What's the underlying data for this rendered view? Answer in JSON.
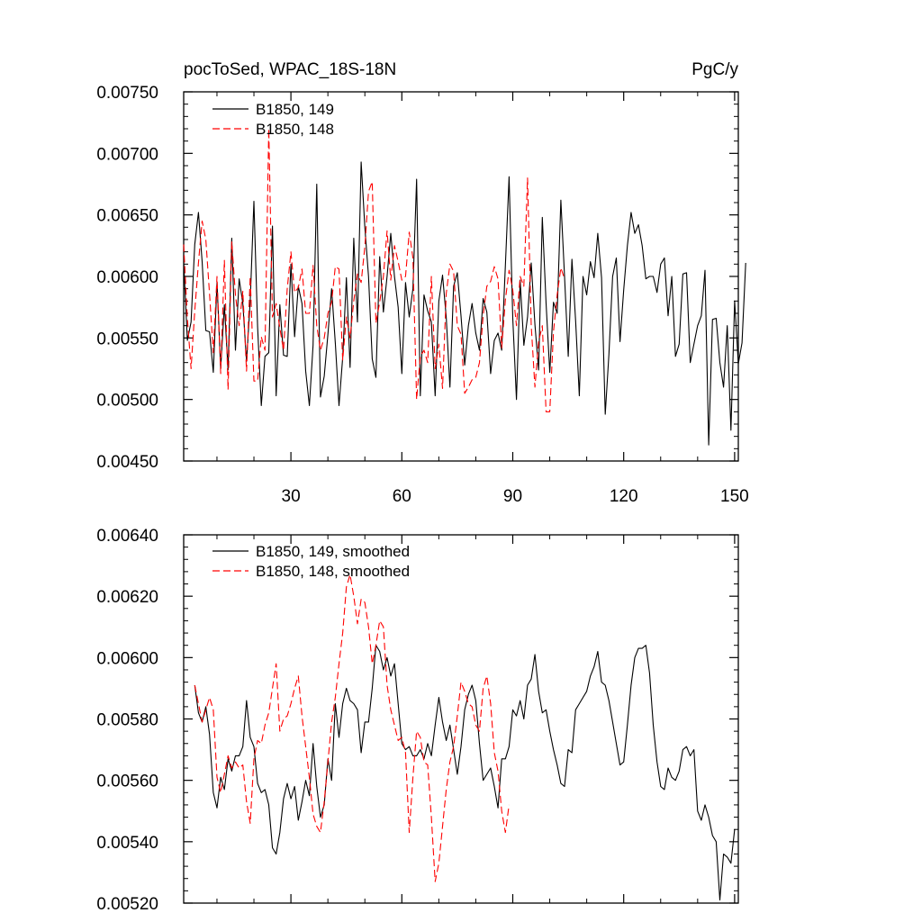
{
  "chart_data": [
    {
      "type": "line",
      "title": "pocToSed, WPAC_18S-18N",
      "units": "PgC/y",
      "xlim": [
        1,
        151
      ],
      "ylim": [
        0.0045,
        0.0075
      ],
      "xticks": [
        30,
        60,
        90,
        120,
        150
      ],
      "yticks": [
        "0.00450",
        "0.00500",
        "0.00550",
        "0.00600",
        "0.00650",
        "0.00700",
        "0.00750"
      ],
      "legend_position": "top-left",
      "series": [
        {
          "name": "B1850, 149",
          "color": "#000000",
          "dash": "solid",
          "x_start": 1,
          "values": [
            0.00612,
            0.00548,
            0.00563,
            0.00626,
            0.00652,
            0.00612,
            0.00556,
            0.00555,
            0.00522,
            0.00595,
            0.00525,
            0.00577,
            0.00524,
            0.00631,
            0.0054,
            0.00598,
            0.00578,
            0.00531,
            0.0058,
            0.00661,
            0.00559,
            0.00495,
            0.00535,
            0.00538,
            0.00641,
            0.00503,
            0.00577,
            0.00536,
            0.00535,
            0.0061,
            0.00551,
            0.00592,
            0.00578,
            0.00523,
            0.00495,
            0.00544,
            0.00675,
            0.00502,
            0.00519,
            0.00553,
            0.0059,
            0.00546,
            0.00495,
            0.00534,
            0.00599,
            0.00526,
            0.00631,
            0.00563,
            0.00693,
            0.0064,
            0.006,
            0.00533,
            0.00518,
            0.00616,
            0.00571,
            0.006,
            0.00635,
            0.006,
            0.00575,
            0.00521,
            0.00595,
            0.00567,
            0.0059,
            0.00679,
            0.00503,
            0.00585,
            0.00572,
            0.00563,
            0.00503,
            0.0058,
            0.00601,
            0.00567,
            0.0051,
            0.00592,
            0.00603,
            0.00568,
            0.00528,
            0.0056,
            0.00578,
            0.00554,
            0.0054,
            0.00582,
            0.00571,
            0.00521,
            0.00548,
            0.00554,
            0.0054,
            0.00609,
            0.00681,
            0.00566,
            0.005,
            0.00597,
            0.00544,
            0.00567,
            0.00611,
            0.00561,
            0.00524,
            0.00648,
            0.00578,
            0.00522,
            0.00579,
            0.0057,
            0.00662,
            0.006,
            0.00535,
            0.00614,
            0.00564,
            0.00503,
            0.006,
            0.00585,
            0.00612,
            0.00599,
            0.00635,
            0.00599,
            0.00488,
            0.00537,
            0.006,
            0.00615,
            0.00547,
            0.00589,
            0.00625,
            0.00652,
            0.00635,
            0.00642,
            0.00625,
            0.00598,
            0.006,
            0.006,
            0.00587,
            0.0061,
            0.00615,
            0.00568,
            0.006,
            0.00535,
            0.00545,
            0.00602,
            0.00603,
            0.0053,
            0.00545,
            0.0056,
            0.00568,
            0.00605,
            0.00463,
            0.00565,
            0.00566,
            0.0053,
            0.0051,
            0.0056,
            0.00475,
            0.0058,
            0.00529,
            0.00546,
            0.00611
          ]
        },
        {
          "name": "B1850, 148",
          "color": "#ff0000",
          "dash": "dashed",
          "x_start": 1,
          "values": [
            0.00626,
            0.00566,
            0.00525,
            0.00572,
            0.00611,
            0.00645,
            0.0063,
            0.00586,
            0.00538,
            0.006,
            0.00521,
            0.00613,
            0.00508,
            0.00628,
            0.00585,
            0.0056,
            0.00588,
            0.00523,
            0.006,
            0.00515,
            0.00515,
            0.00551,
            0.0054,
            0.0072,
            0.00567,
            0.00578,
            0.00558,
            0.0054,
            0.0059,
            0.0062,
            0.00587,
            0.00591,
            0.00606,
            0.0057,
            0.0057,
            0.00609,
            0.0056,
            0.0054,
            0.0055,
            0.0057,
            0.00579,
            0.00608,
            0.00606,
            0.00532,
            0.00567,
            0.0055,
            0.0058,
            0.00602,
            0.00595,
            0.00624,
            0.00669,
            0.00677,
            0.00562,
            0.00579,
            0.006,
            0.00637,
            0.00597,
            0.00625,
            0.00612,
            0.00597,
            0.006,
            0.00636,
            0.00615,
            0.005,
            0.00535,
            0.0054,
            0.0053,
            0.006,
            0.00525,
            0.00545,
            0.00509,
            0.00586,
            0.0061,
            0.00604,
            0.0056,
            0.00553,
            0.00505,
            0.0051,
            0.00516,
            0.00518,
            0.0053,
            0.00568,
            0.00592,
            0.00596,
            0.00608,
            0.00598,
            0.00542,
            0.00581,
            0.00605,
            0.00589,
            0.0056,
            0.006,
            0.00592,
            0.0068,
            0.0056,
            0.0051,
            0.00547,
            0.0056,
            0.0049,
            0.0049,
            0.00555,
            0.00585,
            0.00607,
            0.00598
          ]
        }
      ]
    },
    {
      "type": "line",
      "title": "",
      "units": "",
      "xlim": [
        1,
        151
      ],
      "ylim": [
        0.0052,
        0.0064
      ],
      "xticks": [
        30,
        60,
        90,
        120,
        150
      ],
      "yticks": [
        "0.00520",
        "0.00540",
        "0.00560",
        "0.00580",
        "0.00600",
        "0.00620",
        "0.00640"
      ],
      "legend_position": "top-left",
      "series": [
        {
          "name": "B1850, 149, smoothed",
          "color": "#000000",
          "dash": "solid",
          "x_start": 4,
          "values": [
            0.00591,
            0.00582,
            0.00579,
            0.00584,
            0.00575,
            0.00556,
            0.00551,
            0.00561,
            0.00557,
            0.00567,
            0.00563,
            0.00568,
            0.00568,
            0.00571,
            0.00586,
            0.00574,
            0.00571,
            0.00559,
            0.00556,
            0.00557,
            0.00552,
            0.00538,
            0.00536,
            0.00543,
            0.00554,
            0.00559,
            0.00554,
            0.00558,
            0.00547,
            0.00553,
            0.0056,
            0.00555,
            0.00572,
            0.00558,
            0.00548,
            0.00552,
            0.00567,
            0.0056,
            0.00585,
            0.00574,
            0.00585,
            0.0059,
            0.00586,
            0.00585,
            0.00583,
            0.00569,
            0.00579,
            0.00579,
            0.0059,
            0.00604,
            0.00602,
            0.00596,
            0.006,
            0.00594,
            0.00598,
            0.00585,
            0.00572,
            0.0057,
            0.00571,
            0.00568,
            0.00568,
            0.0057,
            0.00567,
            0.00572,
            0.00568,
            0.00578,
            0.00587,
            0.00579,
            0.00573,
            0.00578,
            0.0057,
            0.00562,
            0.00571,
            0.00583,
            0.00588,
            0.00591,
            0.00586,
            0.00572,
            0.0056,
            0.00562,
            0.00564,
            0.00558,
            0.00551,
            0.00567,
            0.00567,
            0.00571,
            0.00583,
            0.00581,
            0.00586,
            0.0058,
            0.00591,
            0.00593,
            0.00601,
            0.00589,
            0.00582,
            0.00583,
            0.00576,
            0.0057,
            0.00565,
            0.00559,
            0.00558,
            0.0057,
            0.00569,
            0.00583,
            0.00585,
            0.00587,
            0.00589,
            0.00594,
            0.00597,
            0.00602,
            0.00592,
            0.00591,
            0.00586,
            0.00579,
            0.00572,
            0.00565,
            0.00566,
            0.00578,
            0.00591,
            0.006,
            0.00603,
            0.00603,
            0.00604,
            0.00595,
            0.00578,
            0.00566,
            0.00558,
            0.00557,
            0.00564,
            0.00561,
            0.0056,
            0.00563,
            0.0057,
            0.00571,
            0.00568,
            0.0057,
            0.0055,
            0.00547,
            0.00552,
            0.00548,
            0.00542,
            0.0054,
            0.00521,
            0.00536,
            0.00535,
            0.00533,
            0.00544
          ]
        },
        {
          "name": "B1850, 148, smoothed",
          "color": "#ff0000",
          "dash": "dashed",
          "x_start": 4,
          "values": [
            0.00591,
            0.00585,
            0.00579,
            0.00583,
            0.00587,
            0.00583,
            0.00561,
            0.00556,
            0.00562,
            0.00568,
            0.00564,
            0.00566,
            0.00564,
            0.00565,
            0.00553,
            0.00546,
            0.00567,
            0.00573,
            0.00572,
            0.00578,
            0.00582,
            0.0059,
            0.00598,
            0.00576,
            0.0058,
            0.00581,
            0.00585,
            0.0059,
            0.00594,
            0.00581,
            0.00571,
            0.00561,
            0.00549,
            0.00545,
            0.00543,
            0.00553,
            0.00566,
            0.00579,
            0.00587,
            0.00598,
            0.00608,
            0.00623,
            0.00627,
            0.0062,
            0.00611,
            0.00619,
            0.00618,
            0.0061,
            0.00598,
            0.00604,
            0.00612,
            0.0061,
            0.00591,
            0.00583,
            0.00578,
            0.00573,
            0.00574,
            0.00569,
            0.00543,
            0.00561,
            0.00576,
            0.00574,
            0.00566,
            0.00565,
            0.00548,
            0.00527,
            0.00533,
            0.00545,
            0.00557,
            0.00566,
            0.00571,
            0.00581,
            0.00592,
            0.00589,
            0.00585,
            0.00584,
            0.00578,
            0.00576,
            0.0059,
            0.00594,
            0.00585,
            0.00569,
            0.00563,
            0.0055,
            0.00543,
            0.00552
          ]
        }
      ]
    }
  ]
}
